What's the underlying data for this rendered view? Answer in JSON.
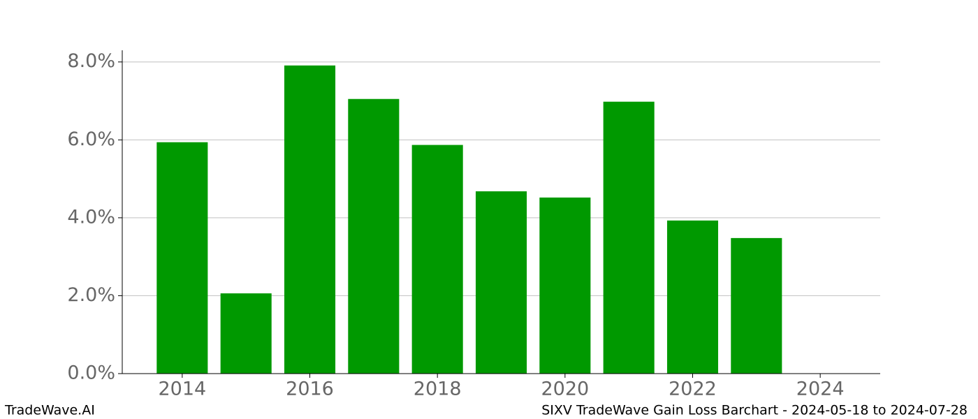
{
  "chart_data": {
    "type": "bar",
    "title": "SIXV TradeWave Gain Loss Barchart - 2024-05-18 to 2024-07-28",
    "watermark": "TradeWave.AI",
    "x": [
      2014,
      2015,
      2016,
      2017,
      2018,
      2019,
      2020,
      2021,
      2022,
      2023
    ],
    "values": [
      5.94,
      2.06,
      7.91,
      7.05,
      5.87,
      4.68,
      4.52,
      6.98,
      3.93,
      3.48
    ],
    "color": "#009900",
    "xlim": [
      2013.06,
      2024.94
    ],
    "xticks": [
      2014,
      2016,
      2018,
      2020,
      2022,
      2024
    ],
    "ylim": [
      0,
      8.3
    ],
    "yticks": [
      {
        "value": 0,
        "label": "0.0%"
      },
      {
        "value": 2,
        "label": "2.0%"
      },
      {
        "value": 4,
        "label": "4.0%"
      },
      {
        "value": 6,
        "label": "6.0%"
      },
      {
        "value": 8,
        "label": "8.0%"
      }
    ],
    "grid": true
  }
}
